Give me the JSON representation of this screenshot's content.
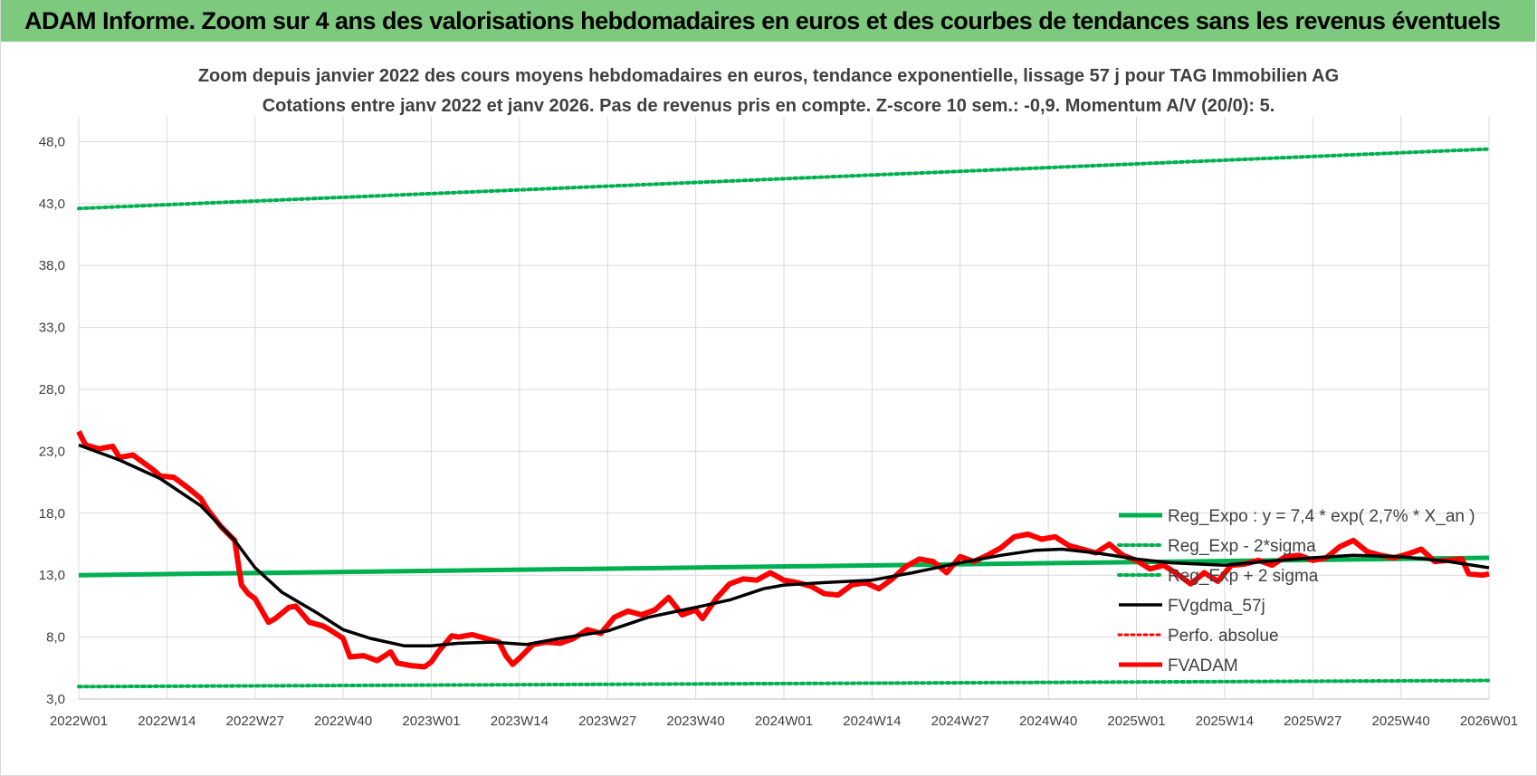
{
  "banner": {
    "title": "ADAM Informe. Zoom sur 4 ans des valorisations hebdomadaires en euros et des courbes de tendances sans les revenus éventuels"
  },
  "colors": {
    "banner_bg": "#7dc97d",
    "reg_expo": "#00b050",
    "fvgdma": "#000000",
    "fvadam": "#ff0000",
    "perfo": "#ff0000",
    "grid": "#d9d9d9",
    "text": "#404040"
  },
  "chart_data": {
    "type": "line",
    "title": "Zoom depuis janvier 2022 des cours moyens hebdomadaires en euros, tendance exponentielle, lissage 57 j pour TAG Immobilien AG",
    "subtitle": "Cotations entre janv 2022 et janv 2026. Pas de revenus pris en compte. Z-score 10 sem.: -0,9. Momentum A/V (20/0): 5.",
    "x_ticks": [
      "2022W01",
      "2022W14",
      "2022W27",
      "2022W40",
      "2023W01",
      "2023W14",
      "2023W27",
      "2023W40",
      "2024W01",
      "2024W14",
      "2024W27",
      "2024W40",
      "2025W01",
      "2025W14",
      "2025W27",
      "2025W40",
      "2026W01"
    ],
    "y_ticks": [
      "3,0",
      "8,0",
      "13,0",
      "18,0",
      "23,0",
      "28,0",
      "33,0",
      "38,0",
      "43,0",
      "48,0"
    ],
    "ylim": [
      3,
      50
    ],
    "x_range": [
      "2022W01",
      "2026W01"
    ],
    "grid": true,
    "legend_position": "right",
    "series": [
      {
        "name": "Reg_Expo : y = 7,4 * exp( 2,7% *  X_an )",
        "style": "solid-green",
        "points": [
          [
            "2022W01",
            13.0
          ],
          [
            "2026W01",
            14.4
          ]
        ]
      },
      {
        "name": "Reg_Exp - 2*sigma",
        "style": "dotted-green",
        "points": [
          [
            "2022W01",
            4.0
          ],
          [
            "2026W01",
            4.5
          ]
        ]
      },
      {
        "name": "Reg_Exp + 2 sigma",
        "style": "dotted-green",
        "points": [
          [
            "2022W01",
            42.6
          ],
          [
            "2026W01",
            47.4
          ]
        ]
      },
      {
        "name": "FVgdma_57j",
        "style": "solid-black",
        "points": [
          [
            "2022W01",
            23.5
          ],
          [
            "2022W07",
            22.3
          ],
          [
            "2022W13",
            20.8
          ],
          [
            "2022W19",
            18.6
          ],
          [
            "2022W24",
            15.8
          ],
          [
            "2022W27",
            13.6
          ],
          [
            "2022W31",
            11.6
          ],
          [
            "2022W36",
            10.0
          ],
          [
            "2022W40",
            8.6
          ],
          [
            "2022W44",
            7.9
          ],
          [
            "2022W49",
            7.3
          ],
          [
            "2023W01",
            7.3
          ],
          [
            "2023W05",
            7.5
          ],
          [
            "2023W10",
            7.6
          ],
          [
            "2023W15",
            7.4
          ],
          [
            "2023W20",
            7.9
          ],
          [
            "2023W27",
            8.5
          ],
          [
            "2023W33",
            9.6
          ],
          [
            "2023W40",
            10.4
          ],
          [
            "2023W45",
            11.0
          ],
          [
            "2023W50",
            11.9
          ],
          [
            "2024W01",
            12.2
          ],
          [
            "2024W07",
            12.4
          ],
          [
            "2024W14",
            12.6
          ],
          [
            "2024W20",
            13.2
          ],
          [
            "2024W27",
            14.0
          ],
          [
            "2024W33",
            14.6
          ],
          [
            "2024W38",
            15.0
          ],
          [
            "2024W42",
            15.1
          ],
          [
            "2024W47",
            14.8
          ],
          [
            "2025W01",
            14.3
          ],
          [
            "2025W06",
            14.0
          ],
          [
            "2025W14",
            13.8
          ],
          [
            "2025W20",
            14.1
          ],
          [
            "2025W27",
            14.4
          ],
          [
            "2025W33",
            14.6
          ],
          [
            "2025W40",
            14.5
          ],
          [
            "2025W47",
            14.1
          ],
          [
            "2026W01",
            13.6
          ]
        ]
      },
      {
        "name": "Perfo. absolue",
        "style": "dotted-red",
        "points": []
      },
      {
        "name": "FVADAM",
        "style": "solid-red",
        "points": [
          [
            "2022W01",
            24.6
          ],
          [
            "2022W02",
            23.5
          ],
          [
            "2022W04",
            23.2
          ],
          [
            "2022W06",
            23.4
          ],
          [
            "2022W07",
            22.5
          ],
          [
            "2022W09",
            22.7
          ],
          [
            "2022W10",
            22.3
          ],
          [
            "2022W12",
            21.5
          ],
          [
            "2022W13",
            21.0
          ],
          [
            "2022W15",
            20.9
          ],
          [
            "2022W17",
            20.1
          ],
          [
            "2022W19",
            19.2
          ],
          [
            "2022W20",
            18.3
          ],
          [
            "2022W22",
            16.9
          ],
          [
            "2022W24",
            15.8
          ],
          [
            "2022W25",
            12.2
          ],
          [
            "2022W26",
            11.5
          ],
          [
            "2022W27",
            11.1
          ],
          [
            "2022W29",
            9.2
          ],
          [
            "2022W30",
            9.5
          ],
          [
            "2022W32",
            10.4
          ],
          [
            "2022W33",
            10.5
          ],
          [
            "2022W35",
            9.2
          ],
          [
            "2022W37",
            8.9
          ],
          [
            "2022W38",
            8.6
          ],
          [
            "2022W40",
            7.9
          ],
          [
            "2022W41",
            6.4
          ],
          [
            "2022W43",
            6.5
          ],
          [
            "2022W45",
            6.1
          ],
          [
            "2022W47",
            6.8
          ],
          [
            "2022W48",
            5.9
          ],
          [
            "2022W50",
            5.7
          ],
          [
            "2022W52",
            5.6
          ],
          [
            "2023W01",
            6.0
          ],
          [
            "2023W02",
            6.8
          ],
          [
            "2023W04",
            8.1
          ],
          [
            "2023W05",
            8.0
          ],
          [
            "2023W07",
            8.2
          ],
          [
            "2023W09",
            7.9
          ],
          [
            "2023W11",
            7.6
          ],
          [
            "2023W12",
            6.5
          ],
          [
            "2023W13",
            5.8
          ],
          [
            "2023W14",
            6.3
          ],
          [
            "2023W16",
            7.4
          ],
          [
            "2023W18",
            7.6
          ],
          [
            "2023W20",
            7.5
          ],
          [
            "2023W22",
            7.9
          ],
          [
            "2023W24",
            8.6
          ],
          [
            "2023W26",
            8.3
          ],
          [
            "2023W28",
            9.6
          ],
          [
            "2023W30",
            10.1
          ],
          [
            "2023W32",
            9.8
          ],
          [
            "2023W34",
            10.2
          ],
          [
            "2023W36",
            11.2
          ],
          [
            "2023W38",
            9.8
          ],
          [
            "2023W40",
            10.2
          ],
          [
            "2023W41",
            9.5
          ],
          [
            "2023W43",
            11.1
          ],
          [
            "2023W45",
            12.3
          ],
          [
            "2023W47",
            12.7
          ],
          [
            "2023W49",
            12.6
          ],
          [
            "2023W51",
            13.2
          ],
          [
            "2024W01",
            12.6
          ],
          [
            "2024W03",
            12.4
          ],
          [
            "2024W05",
            12.1
          ],
          [
            "2024W07",
            11.5
          ],
          [
            "2024W09",
            11.4
          ],
          [
            "2024W11",
            12.2
          ],
          [
            "2024W13",
            12.4
          ],
          [
            "2024W15",
            11.9
          ],
          [
            "2024W17",
            12.7
          ],
          [
            "2024W19",
            13.7
          ],
          [
            "2024W21",
            14.3
          ],
          [
            "2024W23",
            14.1
          ],
          [
            "2024W25",
            13.2
          ],
          [
            "2024W27",
            14.5
          ],
          [
            "2024W29",
            14.1
          ],
          [
            "2024W31",
            14.6
          ],
          [
            "2024W33",
            15.2
          ],
          [
            "2024W35",
            16.1
          ],
          [
            "2024W37",
            16.3
          ],
          [
            "2024W39",
            15.9
          ],
          [
            "2024W41",
            16.1
          ],
          [
            "2024W43",
            15.4
          ],
          [
            "2024W45",
            15.1
          ],
          [
            "2024W47",
            14.8
          ],
          [
            "2024W49",
            15.5
          ],
          [
            "2024W51",
            14.6
          ],
          [
            "2025W01",
            14.2
          ],
          [
            "2025W03",
            13.5
          ],
          [
            "2025W05",
            13.8
          ],
          [
            "2025W07",
            13.1
          ],
          [
            "2025W09",
            12.3
          ],
          [
            "2025W11",
            13.2
          ],
          [
            "2025W13",
            12.5
          ],
          [
            "2025W15",
            13.8
          ],
          [
            "2025W17",
            13.9
          ],
          [
            "2025W19",
            14.2
          ],
          [
            "2025W21",
            13.8
          ],
          [
            "2025W23",
            14.5
          ],
          [
            "2025W25",
            14.6
          ],
          [
            "2025W27",
            14.2
          ],
          [
            "2025W29",
            14.4
          ],
          [
            "2025W31",
            15.3
          ],
          [
            "2025W33",
            15.8
          ],
          [
            "2025W35",
            14.9
          ],
          [
            "2025W37",
            14.6
          ],
          [
            "2025W39",
            14.4
          ],
          [
            "2025W41",
            14.7
          ],
          [
            "2025W43",
            15.1
          ],
          [
            "2025W45",
            14.1
          ],
          [
            "2025W47",
            14.2
          ],
          [
            "2025W49",
            14.3
          ],
          [
            "2025W50",
            13.1
          ],
          [
            "2025W52",
            13.0
          ],
          [
            "2026W01",
            13.1
          ]
        ]
      }
    ]
  }
}
